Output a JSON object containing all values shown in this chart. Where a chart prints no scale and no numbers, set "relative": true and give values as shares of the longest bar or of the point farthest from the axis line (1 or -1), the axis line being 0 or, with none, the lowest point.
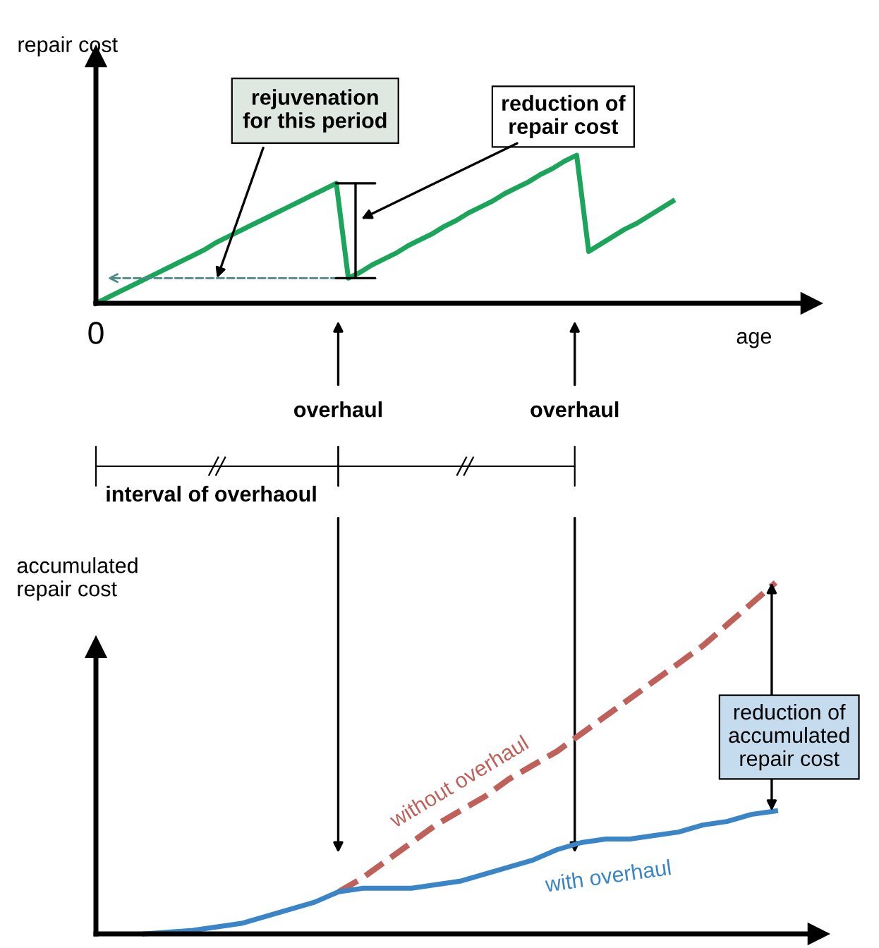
{
  "chart_data": [
    {
      "type": "line",
      "relative": true,
      "ylabel": "repair cost",
      "xlabel": "age",
      "categories": [
        null,
        null,
        null,
        null,
        null,
        null,
        null,
        null,
        null,
        null,
        null,
        null,
        null,
        null,
        null,
        null,
        null,
        null,
        null,
        null,
        null,
        null,
        null,
        null,
        null,
        null,
        null,
        null,
        null,
        null,
        null,
        null,
        null,
        null,
        null,
        null,
        null,
        null,
        null,
        null,
        null,
        null,
        null,
        null,
        null,
        null,
        null,
        null,
        null
      ],
      "series": [
        {
          "color": "#1aa55a",
          "values": [
            0,
            0.04,
            0.08,
            0.12,
            0.16,
            0.2,
            0.24,
            0.28,
            0.32,
            0.36,
            0.41,
            0.45,
            0.49,
            0.53,
            0.57,
            0.61,
            0.65,
            0.69,
            0.73,
            0.77,
            0.81,
            0.17,
            0.21,
            0.26,
            0.3,
            0.34,
            0.39,
            0.43,
            0.47,
            0.52,
            0.56,
            0.61,
            0.65,
            0.69,
            0.74,
            0.78,
            0.82,
            0.87,
            0.91,
            0.96,
            1.0,
            0.35,
            0.4,
            0.45,
            0.5,
            0.54,
            0.59,
            0.64,
            0.69
          ]
        }
      ],
      "annotations": [
        "rejuvenation\nfor this period",
        "reduction of\nrepair cost",
        "overhaul",
        "overhaul",
        "interval of overhaoul",
        "0"
      ]
    },
    {
      "type": "line",
      "relative": true,
      "ylabel": "accumulated\nrepair cost",
      "categories": [
        null,
        null,
        null,
        null,
        null,
        null,
        null,
        null,
        null,
        null,
        null,
        null,
        null,
        null,
        null,
        null,
        null,
        null,
        null,
        null,
        null,
        null,
        null,
        null,
        null,
        null,
        null,
        null,
        null
      ],
      "series": [
        {
          "name": "without overhaul",
          "color": "#c0605a",
          "line_style": "dashed",
          "values": [
            null,
            null,
            null,
            null,
            null,
            null,
            null,
            null,
            null,
            null,
            0.12,
            0.16,
            0.21,
            0.26,
            0.31,
            0.35,
            0.39,
            0.44,
            0.48,
            0.52,
            0.57,
            0.62,
            0.67,
            0.72,
            0.77,
            0.82,
            0.88,
            0.94,
            1.0
          ]
        },
        {
          "name": "with overhaul",
          "color": "#3a85c8",
          "line_style": "solid",
          "values": [
            null,
            null,
            0,
            0.005,
            0.01,
            0.02,
            0.03,
            0.05,
            0.07,
            0.09,
            0.12,
            0.13,
            0.13,
            0.13,
            0.14,
            0.15,
            0.17,
            0.19,
            0.21,
            0.24,
            0.26,
            0.27,
            0.27,
            0.28,
            0.29,
            0.31,
            0.32,
            0.34,
            0.35
          ]
        }
      ],
      "annotations": [
        "reduction of\naccumulated\nrepair cost"
      ]
    }
  ]
}
